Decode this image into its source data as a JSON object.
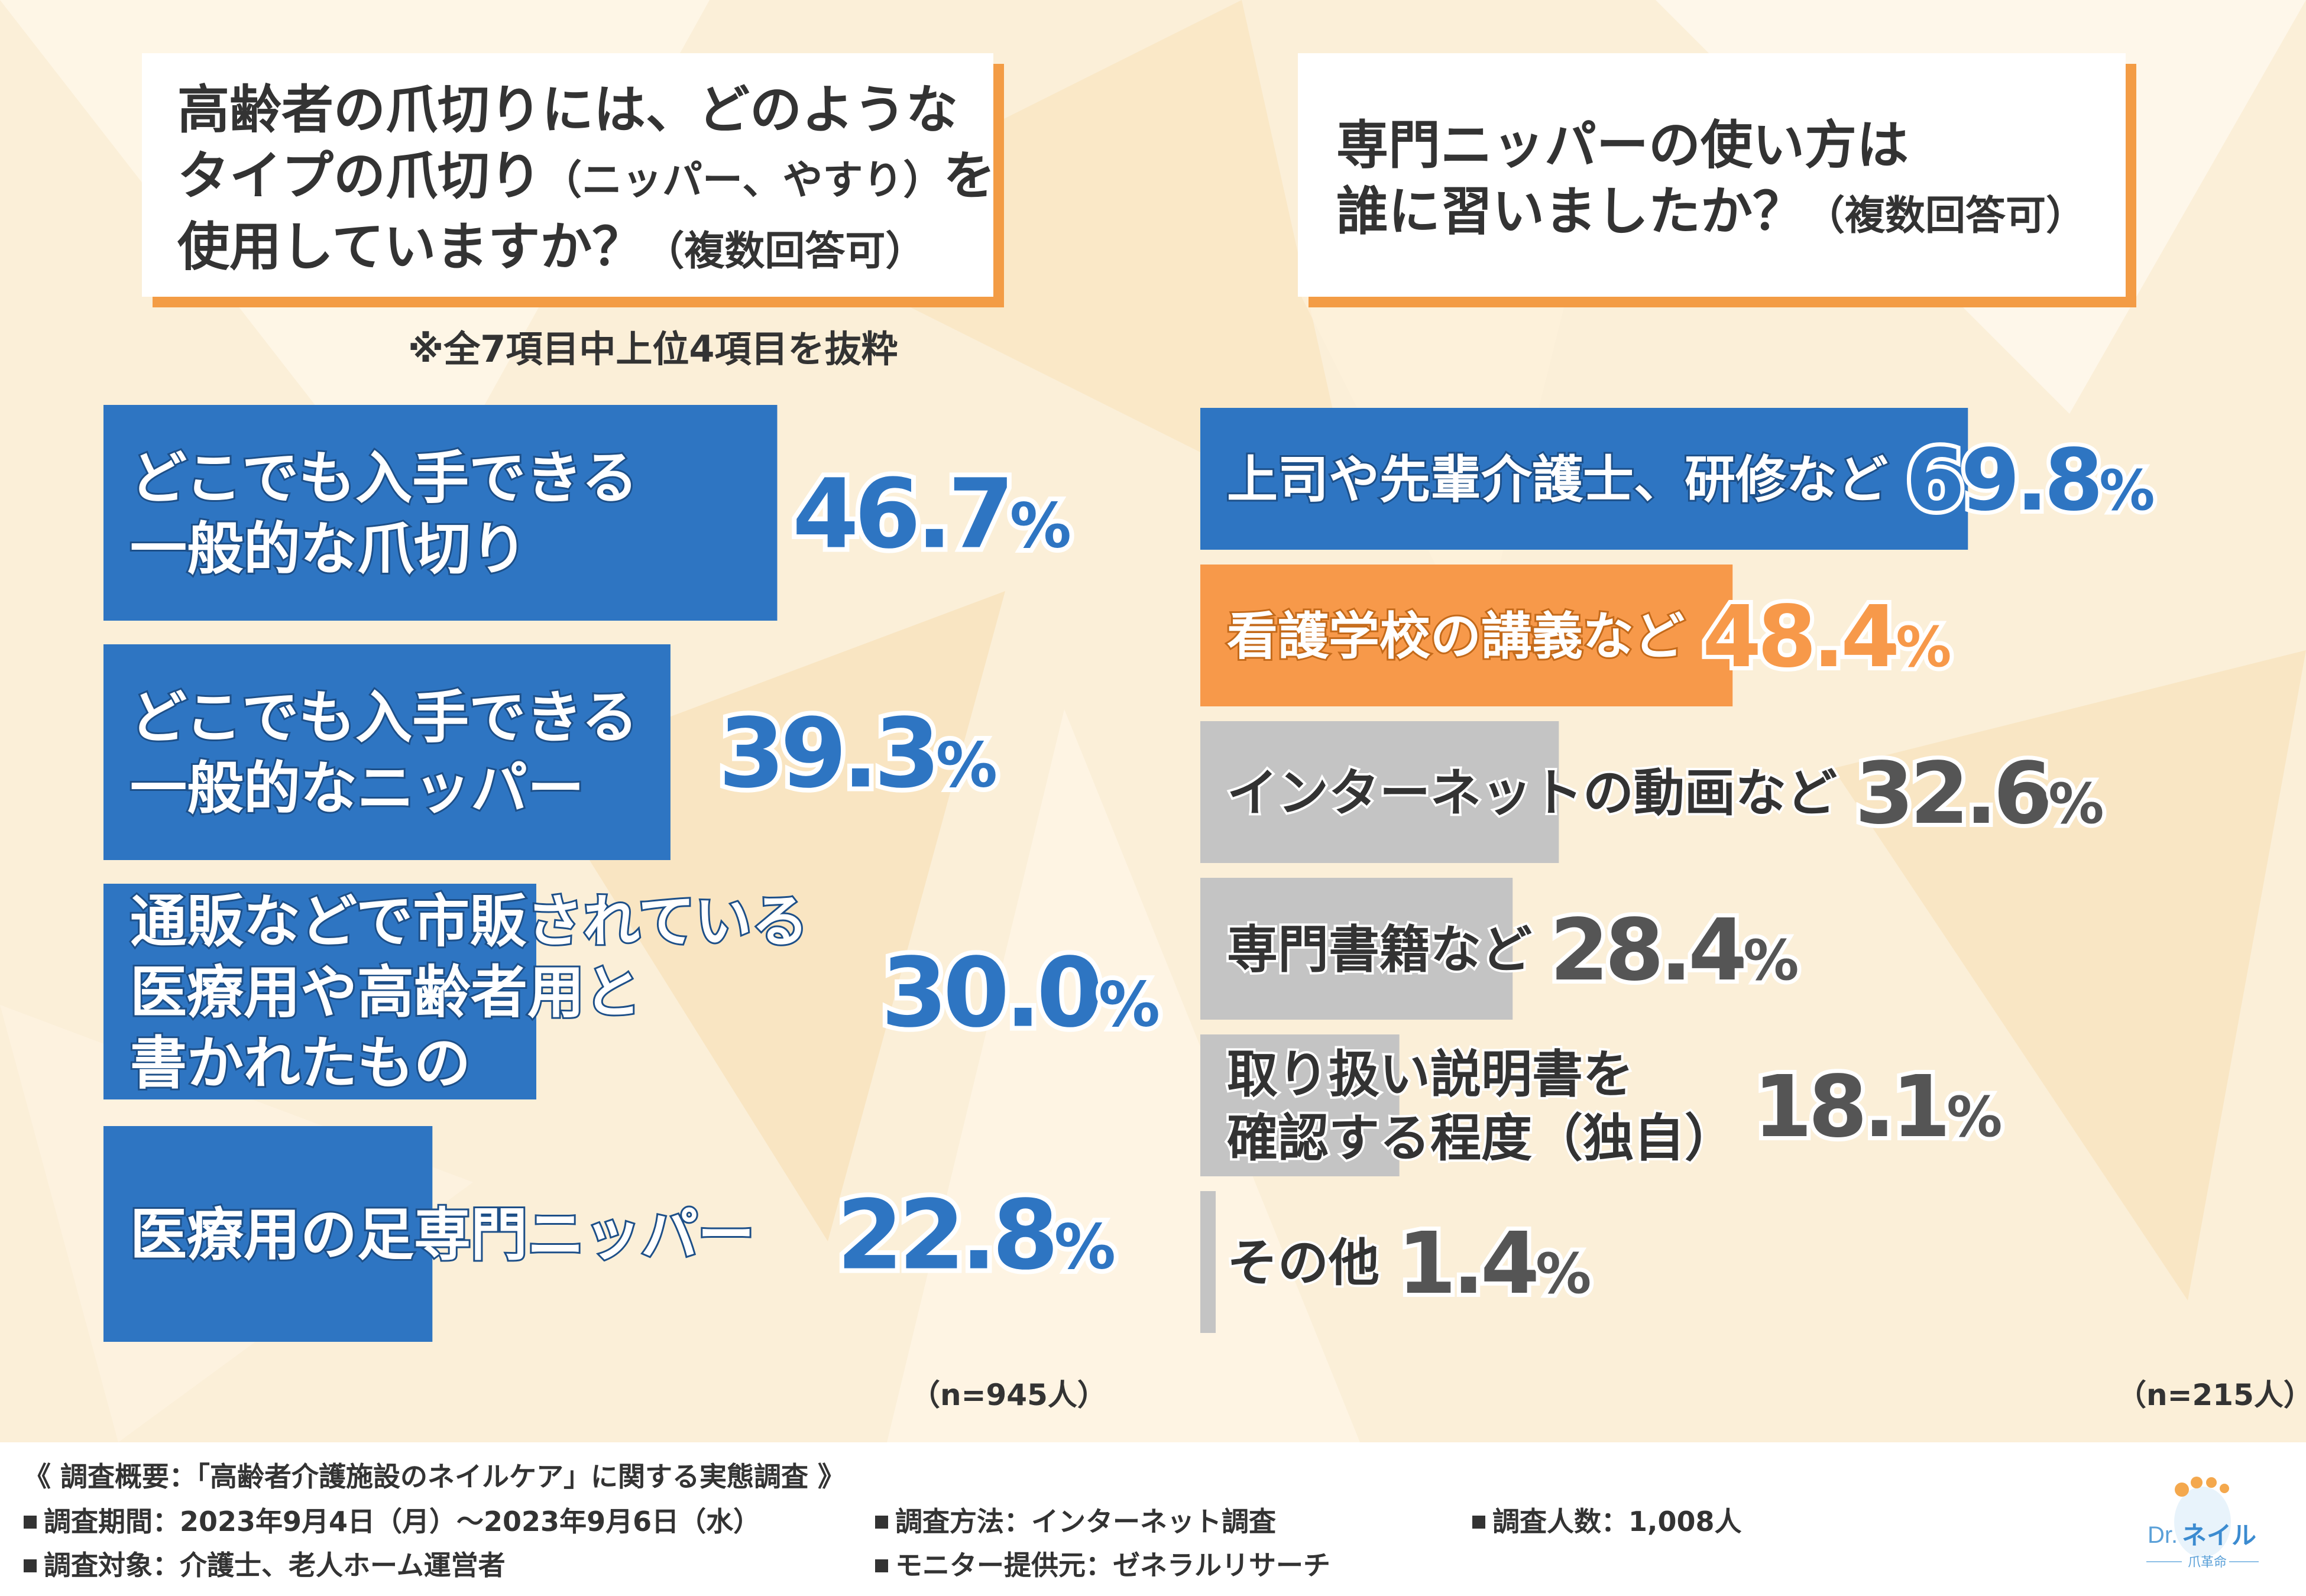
{
  "left": {
    "question_lines": [
      "高齢者の爪切りには、どのような",
      "タイプの爪切り",
      "使用していますか？"
    ],
    "question_paren1": "（ニッパー、やすり）",
    "question_wo": "を",
    "question_paren2": "（複数回答可）",
    "note": "※全7項目中上位4項目を抜粋",
    "n": "（n=945人）"
  },
  "right": {
    "question_lines": [
      "専門ニッパーの使い方は",
      "誰に習いましたか？"
    ],
    "question_paren": "（複数回答可）",
    "n": "（n=215人）"
  },
  "chart_data": [
    {
      "type": "bar",
      "orientation": "horizontal",
      "categories": [
        "どこでも入手できる一般的な爪切り",
        "どこでも入手できる一般的なニッパー",
        "通販などで市販されている医療用や高齢者用と書かれたもの",
        "医療用の足専門ニッパー"
      ],
      "label_lines": [
        [
          "どこでも入手できる",
          "一般的な爪切り"
        ],
        [
          "どこでも入手できる",
          "一般的なニッパー"
        ],
        [
          "通販などで市販されている",
          "医療用や高齢者用と",
          "書かれたもの"
        ],
        [
          "医療用の足専門ニッパー"
        ]
      ],
      "values": [
        46.7,
        39.3,
        30.0,
        22.8
      ],
      "value_labels": [
        [
          "46.7",
          "%"
        ],
        [
          "39.3",
          "%"
        ],
        [
          "30.0",
          "%"
        ],
        [
          "22.8",
          "%"
        ]
      ],
      "bar_color": "#2e75c2",
      "value_color": "#2e75c2"
    },
    {
      "type": "bar",
      "orientation": "horizontal",
      "categories": [
        "上司や先輩介護士、研修など",
        "看護学校の講義など",
        "インターネットの動画など",
        "専門書籍など",
        "取り扱い説明書を確認する程度（独自）",
        "その他"
      ],
      "label_lines": [
        [
          "上司や先輩介護士、研修など"
        ],
        [
          "看護学校の講義など"
        ],
        [
          "インターネットの動画など"
        ],
        [
          "専門書籍など"
        ],
        [
          "取り扱い説明書を",
          "確認する程度（独自）"
        ],
        [
          "その他"
        ]
      ],
      "values": [
        69.8,
        48.4,
        32.6,
        28.4,
        18.1,
        1.4
      ],
      "value_labels": [
        [
          "69.8",
          "%"
        ],
        [
          "48.4",
          "%"
        ],
        [
          "32.6",
          "%"
        ],
        [
          "28.4",
          "%"
        ],
        [
          "18.1",
          "%"
        ],
        [
          "1.4",
          "%"
        ]
      ],
      "bar_colors": [
        "#2e75c2",
        "#f7994a",
        "#c4c4c4",
        "#c4c4c4",
        "#c4c4c4",
        "#c4c4c4"
      ],
      "value_colors": [
        "#2e75c2",
        "#f7994a",
        "#555555",
        "#555555",
        "#555555",
        "#555555"
      ]
    }
  ],
  "footer": {
    "title": "《 調査概要：「高齢者介護施設のネイルケア」に関する実態調査 》",
    "items": [
      "調査期間：2023年9月4日（月）〜2023年9月6日（水）",
      "調査方法：インターネット調査",
      "調査人数：1,008人",
      "調査対象：介護士、老人ホーム運営者",
      "モニター提供元：ゼネラルリサーチ"
    ]
  },
  "logo": {
    "line1": "Dr.",
    "line2": "ネイル",
    "line3": "爪革命"
  }
}
